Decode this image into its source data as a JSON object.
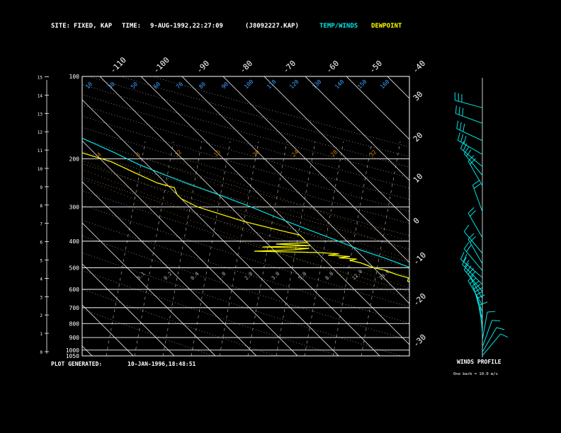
{
  "header": {
    "site_label": "SITE:",
    "site_value": "FIXED, KAP",
    "time_label": "TIME:",
    "time_value": "9-AUG-1992,22:27:09",
    "file": "(J8092227.KAP)",
    "temp_winds": "TEMP/WINDS",
    "dewpoint": "DEWPOINT"
  },
  "footer": {
    "generated_label": "PLOT GENERATED:",
    "generated_value": "10-JAN-1996,18:48:51"
  },
  "winds": {
    "title": "WINDS PROFILE",
    "note": "One barb = 10.0 m/s",
    "levels": [
      {
        "h": 14.4,
        "dir": 285,
        "spd": 25
      },
      {
        "h": 13.5,
        "dir": 290,
        "spd": 25
      },
      {
        "h": 12.5,
        "dir": 295,
        "spd": 30
      },
      {
        "h": 11.7,
        "dir": 300,
        "spd": 25
      },
      {
        "h": 11.0,
        "dir": 310,
        "spd": 20
      },
      {
        "h": 10.5,
        "dir": 320,
        "spd": 20
      },
      {
        "h": 9.9,
        "dir": 330,
        "spd": 20
      },
      {
        "h": 8.4,
        "dir": 340,
        "spd": 20
      },
      {
        "h": 6.9,
        "dir": 330,
        "spd": 20
      },
      {
        "h": 6.0,
        "dir": 320,
        "spd": 10
      },
      {
        "h": 5.4,
        "dir": 330,
        "spd": 20
      },
      {
        "h": 5.0,
        "dir": 320,
        "spd": 20
      },
      {
        "h": 4.6,
        "dir": 310,
        "spd": 20
      },
      {
        "h": 4.2,
        "dir": 315,
        "spd": 20
      },
      {
        "h": 3.8,
        "dir": 320,
        "spd": 20
      },
      {
        "h": 3.4,
        "dir": 330,
        "spd": 20
      },
      {
        "h": 3.0,
        "dir": 330,
        "spd": 15
      },
      {
        "h": 2.6,
        "dir": 340,
        "spd": 15
      },
      {
        "h": 2.2,
        "dir": 345,
        "spd": 15
      },
      {
        "h": 1.8,
        "dir": 350,
        "spd": 10
      },
      {
        "h": 1.4,
        "dir": 355,
        "spd": 10
      },
      {
        "h": 1.0,
        "dir": 10,
        "spd": 10
      },
      {
        "h": 0.6,
        "dir": 20,
        "spd": 10
      },
      {
        "h": 0.3,
        "dir": 30,
        "spd": 10
      },
      {
        "h": 0.1,
        "dir": 40,
        "spd": 10
      }
    ]
  },
  "colors": {
    "background": "#000000",
    "text": "#ffffff",
    "temperature": "#00e5e5",
    "dewpoint": "#ffff00",
    "isobar": "#ffffff",
    "dry_adiabat": "#c0c0c0",
    "moist_adiabat": "#cc7700",
    "mixing_ratio": "#d08030",
    "height": "#3fa0ff"
  },
  "chart_data": {
    "type": "line",
    "diagram": "skew-T log-P",
    "pressure_ticks": [
      "100",
      "200",
      "300",
      "400",
      "500",
      "600",
      "700",
      "800",
      "900",
      "1000",
      "1050"
    ],
    "pressure_values": [
      100,
      200,
      300,
      400,
      500,
      600,
      700,
      800,
      900,
      1000,
      1050
    ],
    "pressure_range": [
      100,
      1050
    ],
    "height_ticks": [
      "0",
      "1",
      "2",
      "3",
      "4",
      "5",
      "6",
      "7",
      "8",
      "9",
      "10",
      "11",
      "12",
      "13",
      "14",
      "15"
    ],
    "temp_ticks_top": [
      "-110",
      "-100",
      "-90",
      "-80",
      "-70",
      "-60",
      "-50",
      "-40"
    ],
    "temp_ticks_right": [
      "-30",
      "-20",
      "-10",
      "0",
      "10",
      "20",
      "30"
    ],
    "dry_adiabat_labels": [
      "10",
      "30",
      "50",
      "60",
      "70",
      "80",
      "90",
      "100",
      "110",
      "120",
      "130",
      "140",
      "150",
      "160"
    ],
    "moist_adiabat_labels": [
      "4",
      "8",
      "12",
      "16",
      "20",
      "24",
      "28",
      "32"
    ],
    "mixing_ratio_labels": [
      "0.1",
      "0.2",
      "0.4",
      "1.0",
      "2.0",
      "3.0",
      "5.0",
      "8.0",
      "12.0",
      "20.0"
    ],
    "series": [
      {
        "name": "TEMP/WINDS",
        "points": [
          [
            1000,
            32
          ],
          [
            960,
            28
          ],
          [
            930,
            25
          ],
          [
            900,
            23
          ],
          [
            870,
            20
          ],
          [
            840,
            18
          ],
          [
            800,
            15
          ],
          [
            770,
            13
          ],
          [
            740,
            11
          ],
          [
            700,
            8
          ],
          [
            660,
            5
          ],
          [
            630,
            2
          ],
          [
            600,
            -1
          ],
          [
            560,
            -5
          ],
          [
            530,
            -8
          ],
          [
            500,
            -11
          ],
          [
            460,
            -15
          ],
          [
            430,
            -19
          ],
          [
            400,
            -22
          ],
          [
            360,
            -27
          ],
          [
            330,
            -31
          ],
          [
            300,
            -35
          ],
          [
            270,
            -40
          ],
          [
            250,
            -44
          ],
          [
            230,
            -48
          ],
          [
            210,
            -52
          ],
          [
            190,
            -55
          ],
          [
            170,
            -59
          ],
          [
            150,
            -63
          ],
          [
            135,
            -67
          ],
          [
            120,
            -68
          ],
          [
            110,
            -69
          ],
          [
            100,
            -70
          ]
        ]
      },
      {
        "name": "DEWPOINT",
        "points": [
          [
            1000,
            20
          ],
          [
            985,
            19
          ],
          [
            975,
            15
          ],
          [
            960,
            12
          ],
          [
            940,
            10
          ],
          [
            920,
            9
          ],
          [
            900,
            6
          ],
          [
            880,
            5
          ],
          [
            860,
            3
          ],
          [
            840,
            2
          ],
          [
            820,
            0
          ],
          [
            800,
            -1
          ],
          [
            780,
            -2
          ],
          [
            760,
            -3
          ],
          [
            740,
            -5
          ],
          [
            720,
            -6
          ],
          [
            700,
            -7
          ],
          [
            680,
            -8
          ],
          [
            660,
            -9
          ],
          [
            640,
            -10
          ],
          [
            620,
            -11
          ],
          [
            600,
            -12
          ],
          [
            580,
            -14
          ],
          [
            560,
            -15
          ],
          [
            545,
            -14
          ],
          [
            530,
            -16
          ],
          [
            520,
            -17
          ],
          [
            510,
            -18
          ],
          [
            500,
            -20
          ],
          [
            490,
            -21
          ],
          [
            480,
            -22
          ],
          [
            470,
            -24
          ],
          [
            465,
            -22
          ],
          [
            460,
            -26
          ],
          [
            455,
            -23
          ],
          [
            450,
            -28
          ],
          [
            445,
            -25
          ],
          [
            440,
            -30
          ],
          [
            435,
            -45
          ],
          [
            430,
            -35
          ],
          [
            425,
            -31
          ],
          [
            420,
            -42
          ],
          [
            415,
            -30
          ],
          [
            410,
            -38
          ],
          [
            405,
            -30
          ],
          [
            400,
            -30
          ],
          [
            380,
            -30
          ],
          [
            360,
            -35
          ],
          [
            340,
            -40
          ],
          [
            330,
            -42
          ],
          [
            300,
            -48
          ],
          [
            280,
            -50
          ],
          [
            270,
            -50
          ],
          [
            255,
            -49
          ],
          [
            245,
            -52
          ],
          [
            225,
            -55
          ],
          [
            205,
            -58
          ],
          [
            190,
            -63
          ],
          [
            170,
            -70
          ],
          [
            150,
            -74
          ],
          [
            130,
            -76
          ],
          [
            115,
            -78
          ],
          [
            105,
            -77
          ],
          [
            100,
            -76
          ]
        ]
      }
    ]
  }
}
